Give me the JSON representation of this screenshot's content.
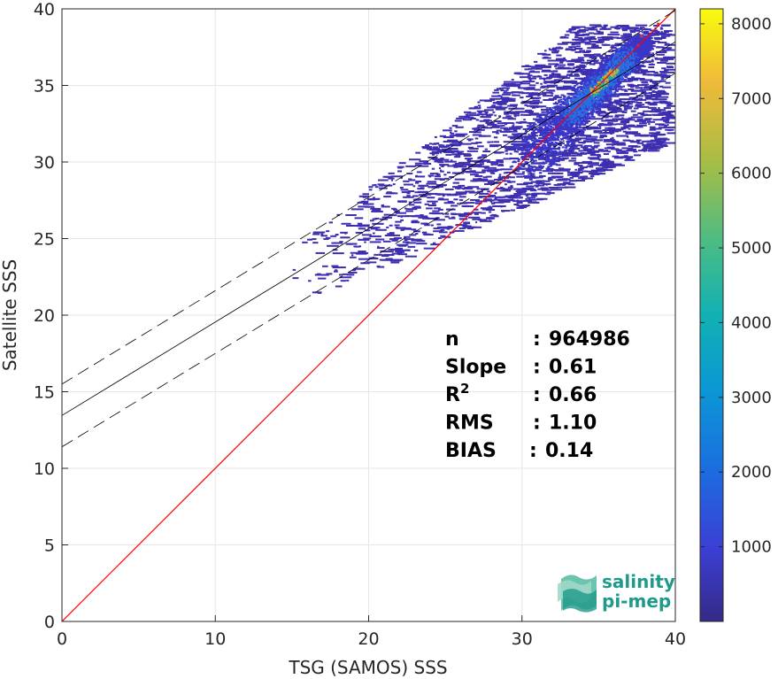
{
  "chart_data": {
    "type": "scatter",
    "subtype": "density-scatter (2D histogram)",
    "title": "",
    "xlabel": "TSG (SAMOS) SSS",
    "ylabel": "Satellite SSS",
    "xlim": [
      0,
      40
    ],
    "ylim": [
      0,
      40
    ],
    "xticks": [
      0,
      10,
      20,
      30,
      40
    ],
    "yticks": [
      0,
      5,
      10,
      15,
      20,
      25,
      30,
      35,
      40
    ],
    "grid": true,
    "colormap": "parula",
    "colorbar": {
      "min": 0,
      "max": 8200,
      "ticks": [
        1000,
        2000,
        3000,
        4000,
        5000,
        6000,
        7000,
        8000
      ]
    },
    "density_core": {
      "x": [
        30,
        35,
        38
      ],
      "y": [
        30,
        35,
        38
      ]
    },
    "density_extent": {
      "x": [
        14.5,
        39.5
      ],
      "y": [
        21,
        39
      ]
    },
    "one_to_one_line": {
      "x": [
        0,
        40
      ],
      "y": [
        0,
        40
      ],
      "color": "#ff0000"
    },
    "regression_line": {
      "slope": 0.61,
      "intercept": 13.45,
      "color": "#000000"
    },
    "regression_band_offset": 2.05,
    "stats": [
      {
        "key": "n",
        "sep": ": ",
        "value": "964986"
      },
      {
        "key": "Slope",
        "sep": ": ",
        "value": "0.61"
      },
      {
        "key": "R",
        "sup": "2",
        "sep": ": ",
        "value": "0.66"
      },
      {
        "key": "RMS",
        "sep": ": ",
        "value": "1.10"
      },
      {
        "key": "BIAS",
        "sep": ": ",
        "value": "0.14"
      }
    ]
  },
  "logo": {
    "line1": "salinity",
    "line2": "pi-mep",
    "color": "#1f9a8a"
  }
}
